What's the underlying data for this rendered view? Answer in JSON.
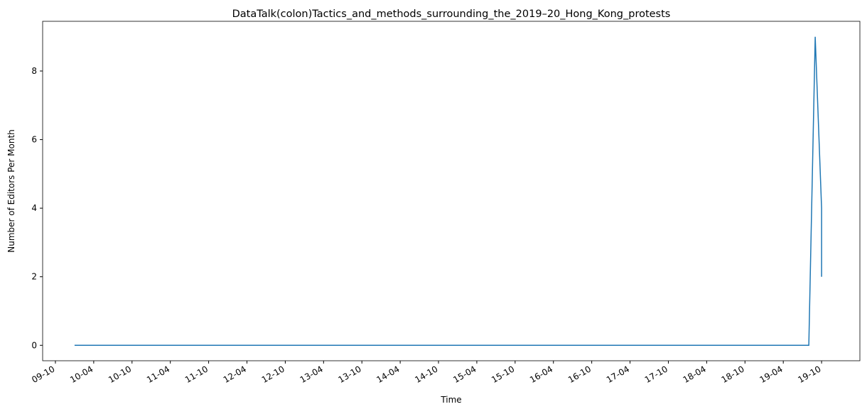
{
  "chart_data": {
    "type": "line",
    "title": "DataTalk(colon)Tactics_and_methods_surrounding_the_2019–20_Hong_Kong_protests",
    "x_label": "Time",
    "y_label": "Number of Editors Per Month",
    "x": [
      "10-01",
      "10-02",
      "10-03",
      "10-04",
      "10-05",
      "10-06",
      "10-07",
      "10-08",
      "10-09",
      "10-10",
      "10-11",
      "10-12",
      "11-01",
      "11-02",
      "11-03",
      "11-04",
      "11-05",
      "11-06",
      "11-07",
      "11-08",
      "11-09",
      "11-10",
      "11-11",
      "11-12",
      "12-01",
      "12-02",
      "12-03",
      "12-04",
      "12-05",
      "12-06",
      "12-07",
      "12-08",
      "12-09",
      "12-10",
      "12-11",
      "12-12",
      "13-01",
      "13-02",
      "13-03",
      "13-04",
      "13-05",
      "13-06",
      "13-07",
      "13-08",
      "13-09",
      "13-10",
      "13-11",
      "13-12",
      "14-01",
      "14-02",
      "14-03",
      "14-04",
      "14-05",
      "14-06",
      "14-07",
      "14-08",
      "14-09",
      "14-10",
      "14-11",
      "14-12",
      "15-01",
      "15-02",
      "15-03",
      "15-04",
      "15-05",
      "15-06",
      "15-07",
      "15-08",
      "15-09",
      "15-10",
      "15-11",
      "15-12",
      "16-01",
      "16-02",
      "16-03",
      "16-04",
      "16-05",
      "16-06",
      "16-07",
      "16-08",
      "16-09",
      "16-10",
      "16-11",
      "16-12",
      "17-01",
      "17-02",
      "17-03",
      "17-04",
      "17-05",
      "17-06",
      "17-07",
      "17-08",
      "17-09",
      "17-10",
      "17-11",
      "17-12",
      "18-01",
      "18-02",
      "18-03",
      "18-04",
      "18-05",
      "18-06",
      "18-07",
      "18-08",
      "18-09",
      "18-10",
      "18-11",
      "18-12",
      "19-01",
      "19-02",
      "19-03",
      "19-04",
      "19-05",
      "19-06",
      "19-07",
      "19-08",
      "19-09",
      "19-10",
      "19-10"
    ],
    "series": [
      {
        "name": "editors",
        "color": "#1f77b4",
        "values": [
          0,
          0,
          0,
          0,
          0,
          0,
          0,
          0,
          0,
          0,
          0,
          0,
          0,
          0,
          0,
          0,
          0,
          0,
          0,
          0,
          0,
          0,
          0,
          0,
          0,
          0,
          0,
          0,
          0,
          0,
          0,
          0,
          0,
          0,
          0,
          0,
          0,
          0,
          0,
          0,
          0,
          0,
          0,
          0,
          0,
          0,
          0,
          0,
          0,
          0,
          0,
          0,
          0,
          0,
          0,
          0,
          0,
          0,
          0,
          0,
          0,
          0,
          0,
          0,
          0,
          0,
          0,
          0,
          0,
          0,
          0,
          0,
          0,
          0,
          0,
          0,
          0,
          0,
          0,
          0,
          0,
          0,
          0,
          0,
          0,
          0,
          0,
          0,
          0,
          0,
          0,
          0,
          0,
          0,
          0,
          0,
          0,
          0,
          0,
          0,
          0,
          0,
          0,
          0,
          0,
          0,
          0,
          0,
          0,
          0,
          0,
          0,
          0,
          0,
          0,
          0,
          9,
          4,
          2
        ]
      }
    ],
    "xlim": [
      "09-08",
      "20-04"
    ],
    "xticks": [
      "09-10",
      "10-04",
      "10-10",
      "11-04",
      "11-10",
      "12-04",
      "12-10",
      "13-04",
      "13-10",
      "14-04",
      "14-10",
      "15-04",
      "15-10",
      "16-04",
      "16-10",
      "17-04",
      "17-10",
      "18-04",
      "18-10",
      "19-04",
      "19-10"
    ],
    "ylim": [
      -0.45,
      9.45
    ],
    "yticks": [
      0,
      2,
      4,
      6,
      8
    ]
  }
}
